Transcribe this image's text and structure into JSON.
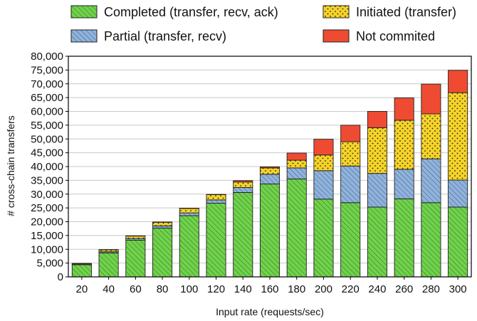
{
  "chart_data": {
    "type": "bar",
    "stacked": true,
    "xlabel": "Input rate (requests/sec)",
    "ylabel": "# cross-chain transfers",
    "ylim": [
      0,
      80000
    ],
    "yticks": [
      "0",
      "5,000",
      "10,000",
      "15,000",
      "20,000",
      "25,000",
      "30,000",
      "35,000",
      "40,000",
      "45,000",
      "50,000",
      "55,000",
      "60,000",
      "65,000",
      "70,000",
      "75,000",
      "80,000"
    ],
    "categories": [
      "20",
      "40",
      "60",
      "80",
      "100",
      "120",
      "140",
      "160",
      "180",
      "200",
      "220",
      "240",
      "260",
      "280",
      "300"
    ],
    "legend_position": "top",
    "series": [
      {
        "name": "Completed (transfer, recv, ack)",
        "color": "#6fd34a",
        "pattern": "diagonal",
        "values": [
          4400,
          8700,
          13300,
          17700,
          22200,
          26700,
          30600,
          33700,
          35500,
          28200,
          26900,
          25300,
          28300,
          26900,
          25300
        ]
      },
      {
        "name": "Partial (transfer, recv)",
        "color": "#8fb3df",
        "pattern": "diagonal",
        "values": [
          100,
          400,
          600,
          800,
          1000,
          1200,
          1800,
          3500,
          4000,
          10300,
          13300,
          12200,
          10700,
          15900,
          9800
        ]
      },
      {
        "name": "Initiated (transfer)",
        "color": "#f5d327",
        "pattern": "dots",
        "values": [
          300,
          700,
          900,
          1300,
          1600,
          1900,
          2000,
          2300,
          2800,
          5700,
          8800,
          16600,
          17800,
          16300,
          31700
        ]
      },
      {
        "name": "Not commited",
        "color": "#ef4b33",
        "pattern": "solid",
        "values": [
          100,
          100,
          100,
          100,
          100,
          100,
          500,
          400,
          2600,
          5700,
          6000,
          5900,
          8100,
          10800,
          8100
        ]
      }
    ]
  }
}
